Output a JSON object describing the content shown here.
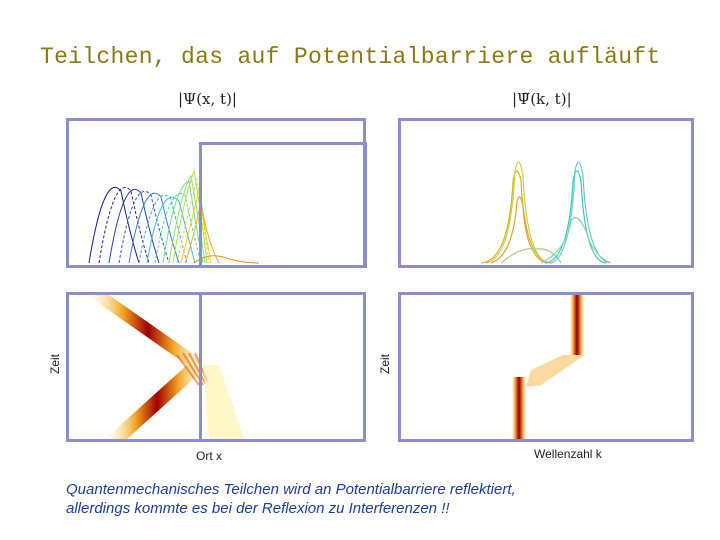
{
  "title": "Teilchen, das auf Potentialbarriere aufläuft",
  "math_labels": {
    "position_space": "|Ψ(x, t)|",
    "momentum_space": "|Ψ̃(k, t)|"
  },
  "axis_labels": {
    "time_left": "Zeit",
    "time_right": "Zeit",
    "x_label": "Ort x",
    "k_label": "Wellenzahl k"
  },
  "caption": {
    "line1": "Quantenmechanisches Teilchen wird an Potentialbarriere reflektiert,",
    "line2": "allerdings kommte es bei der Reflexion zu Interferenzen !!"
  },
  "colors": {
    "panel_border": "#8c8cd0",
    "title": "#8a7a14",
    "caption": "#1e3c9a"
  }
}
